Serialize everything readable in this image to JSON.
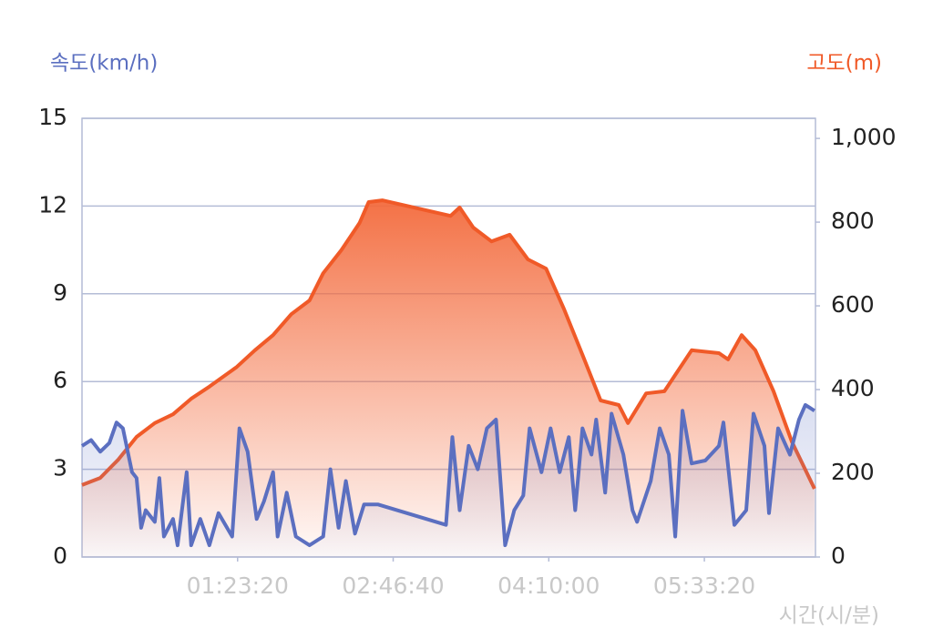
{
  "chart_data": {
    "type": "line",
    "y_axis_label": "속도(km/h)",
    "y2_axis_label": "고도(m)",
    "x_axis_label": "시간(시/분)",
    "xlim": [
      0,
      23570
    ],
    "xticks": [
      {
        "value": 5000,
        "label": "01:23:20"
      },
      {
        "value": 10000,
        "label": "02:46:40"
      },
      {
        "value": 15000,
        "label": "04:10:00"
      },
      {
        "value": 20000,
        "label": "05:33:20"
      }
    ],
    "ylim": [
      0,
      15
    ],
    "yticks": [
      0,
      3,
      6,
      9,
      12,
      15
    ],
    "y2lim": [
      0,
      1048
    ],
    "y2ticks": [
      0,
      200,
      400,
      600,
      800,
      {
        "value": 1000,
        "label": "1,000"
      }
    ],
    "grid": true,
    "series": [
      {
        "name": "고도",
        "color": "#f05a28",
        "axis": "y2",
        "x": [
          0,
          585,
          1170,
          1754,
          2339,
          2924,
          3509,
          4094,
          4971,
          5556,
          6141,
          6725,
          7310,
          7749,
          8334,
          8919,
          9211,
          9650,
          11843,
          12135,
          12574,
          13158,
          13743,
          14328,
          14913,
          15498,
          16083,
          16667,
          17252,
          17544,
          18129,
          18714,
          19591,
          20468,
          20761,
          21199,
          21638,
          22223,
          22808,
          23539
        ],
        "values": [
          172,
          189,
          233,
          287,
          320,
          341,
          378,
          407,
          454,
          494,
          530,
          580,
          613,
          678,
          733,
          798,
          848,
          852,
          815,
          835,
          787,
          754,
          770,
          711,
          689,
          591,
          483,
          374,
          363,
          320,
          391,
          396,
          494,
          487,
          472,
          530,
          494,
          396,
          276,
          163
        ]
      },
      {
        "name": "속도",
        "color": "#5b6fc0",
        "x": [
          0,
          292,
          585,
          877,
          1111,
          1316,
          1608,
          1754,
          1901,
          2047,
          2339,
          2485,
          2632,
          2924,
          3070,
          3363,
          3509,
          3801,
          4094,
          4386,
          4825,
          5059,
          5322,
          5614,
          5848,
          6140,
          6287,
          6579,
          6871,
          7310,
          7749,
          7983,
          8246,
          8480,
          8772,
          9064,
          9503,
          11696,
          11901,
          12135,
          12427,
          12719,
          13012,
          13304,
          13597,
          13889,
          14181,
          14386,
          14766,
          15059,
          15351,
          15643,
          15848,
          16082,
          16374,
          16521,
          16813,
          17018,
          17398,
          17690,
          17836,
          18275,
          18567,
          18860,
          19064,
          19298,
          19591,
          20029,
          20468,
          20614,
          20965,
          21345,
          21579,
          21930,
          22076,
          22369,
          22749,
          23041,
          23246,
          23539
        ],
        "values": [
          3.8,
          4.0,
          3.6,
          3.9,
          4.6,
          4.4,
          2.9,
          2.7,
          1.0,
          1.6,
          1.2,
          2.7,
          0.7,
          1.3,
          0.4,
          2.9,
          0.4,
          1.3,
          0.4,
          1.5,
          0.7,
          4.4,
          3.6,
          1.3,
          1.9,
          2.9,
          0.7,
          2.2,
          0.7,
          0.4,
          0.7,
          3.0,
          1.0,
          2.6,
          0.8,
          1.8,
          1.8,
          1.1,
          4.1,
          1.6,
          3.8,
          3.0,
          4.4,
          4.7,
          0.4,
          1.6,
          2.1,
          4.4,
          2.9,
          4.4,
          2.9,
          4.1,
          1.6,
          4.4,
          3.5,
          4.7,
          2.2,
          4.9,
          3.5,
          1.6,
          1.2,
          2.6,
          4.4,
          3.5,
          0.7,
          5.0,
          3.2,
          3.3,
          3.8,
          4.6,
          1.1,
          1.6,
          4.9,
          3.8,
          1.5,
          4.4,
          3.5,
          4.7,
          5.2,
          5.0
        ]
      }
    ]
  }
}
